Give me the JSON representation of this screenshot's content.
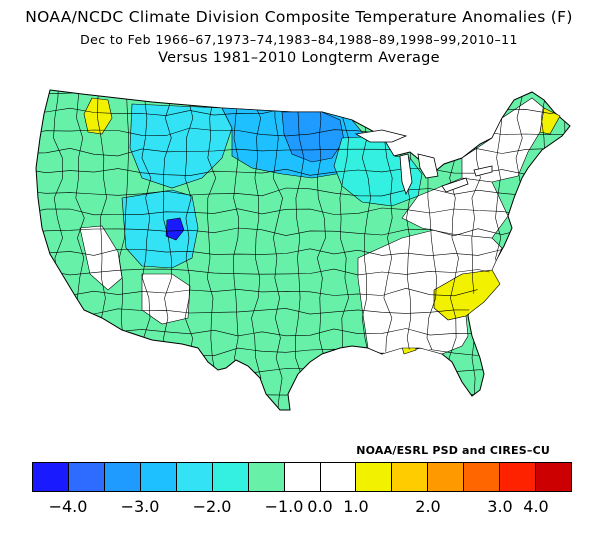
{
  "header": {
    "title": "NOAA/NCDC Climate Division Composite Temperature Anomalies (F)",
    "period": "Dec to Feb   1966–67,1973–74,1983–84,1988–89,1998–99,2010–11",
    "baseline": "Versus 1981–2010 Longterm Average"
  },
  "credit": "NOAA/ESRL PSD and CIRES–CU",
  "legend": {
    "colors": [
      "#1a1aff",
      "#2e6bff",
      "#1f9bff",
      "#1fc0ff",
      "#33e2f5",
      "#33f0e0",
      "#66f0a8",
      "#ffffff",
      "#ffffff",
      "#f2f200",
      "#ffcc00",
      "#ff9900",
      "#ff6600",
      "#ff2200",
      "#cc0000"
    ],
    "labels": [
      "−4.0",
      "−3.0",
      "−2.0",
      "−1.0",
      "0.0",
      "1.0",
      "2.0",
      "3.0",
      "4.0"
    ]
  },
  "map_colors": {
    "green": "#66f0a8",
    "teal": "#33f0e0",
    "cyan": "#33e2f5",
    "lightblue": "#1fc0ff",
    "blue": "#1f9bff",
    "darkblue": "#1a1aff",
    "yellow": "#f2f200",
    "white": "#ffffff"
  }
}
